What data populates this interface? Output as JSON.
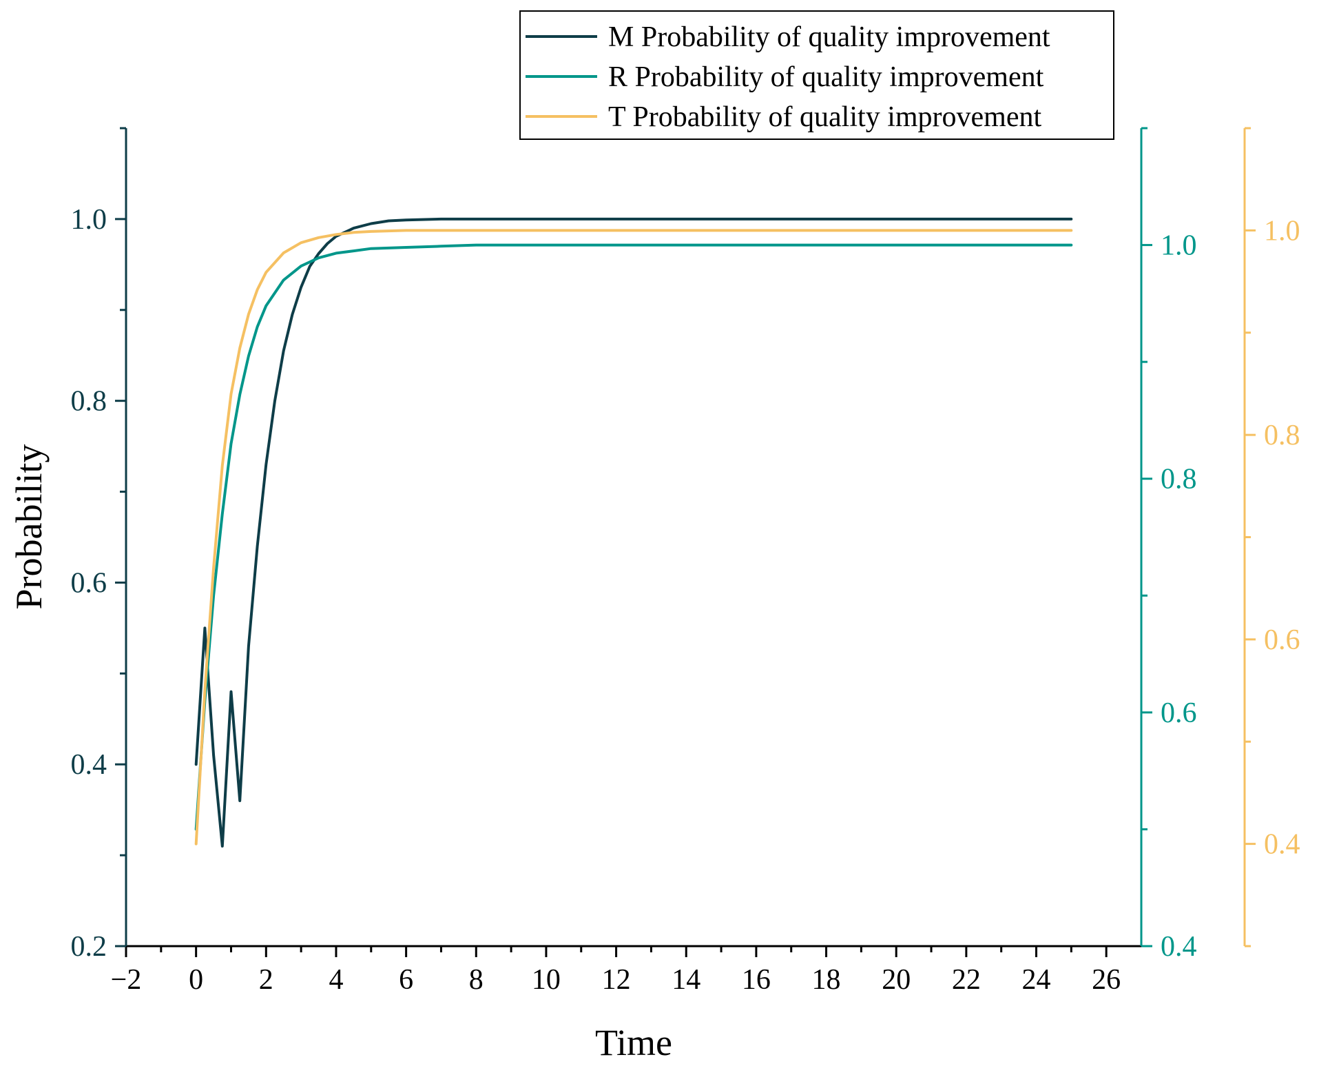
{
  "chart_data": {
    "type": "line",
    "title": "",
    "xlabel": "Time",
    "ylabel": "Probability",
    "xlim": [
      -2,
      27
    ],
    "x_ticks": [
      -2,
      0,
      2,
      4,
      6,
      8,
      10,
      12,
      14,
      16,
      18,
      20,
      22,
      24,
      26
    ],
    "x_tick_labels": [
      "−2",
      "0",
      "2",
      "4",
      "6",
      "8",
      "10",
      "12",
      "14",
      "16",
      "18",
      "20",
      "22",
      "24",
      "26"
    ],
    "axes": [
      {
        "id": "M",
        "side": "left",
        "color": "#0e3d48",
        "ylim": [
          0.2,
          1.1
        ],
        "ticks": [
          0.2,
          0.4,
          0.6,
          0.8,
          1.0
        ],
        "tick_labels": [
          "0.2",
          "0.4",
          "0.6",
          "0.8",
          "1.0"
        ]
      },
      {
        "id": "R",
        "side": "right",
        "color": "#00968a",
        "ylim": [
          0.4,
          1.1
        ],
        "ticks": [
          0.4,
          0.6,
          0.8,
          1.0
        ],
        "tick_labels": [
          "0.4",
          "0.6",
          "0.8",
          "1.0"
        ]
      },
      {
        "id": "T",
        "side": "right-outer",
        "color": "#f5c062",
        "ylim": [
          0.3,
          1.1
        ],
        "ticks": [
          0.4,
          0.6,
          0.8,
          1.0
        ],
        "tick_labels": [
          "0.4",
          "0.6",
          "0.8",
          "1.0"
        ]
      }
    ],
    "legend_position": "top-right",
    "series": [
      {
        "name": "M Probability of quality improvement",
        "axis": "M",
        "color": "#0e3d48",
        "x": [
          0,
          0.25,
          0.5,
          0.75,
          1.0,
          1.25,
          1.5,
          1.75,
          2.0,
          2.25,
          2.5,
          2.75,
          3.0,
          3.25,
          3.5,
          3.75,
          4.0,
          4.5,
          5.0,
          5.5,
          6.0,
          7.0,
          8.0,
          10.0,
          25.0
        ],
        "y": [
          0.4,
          0.55,
          0.41,
          0.31,
          0.48,
          0.36,
          0.53,
          0.64,
          0.73,
          0.8,
          0.855,
          0.895,
          0.925,
          0.948,
          0.962,
          0.973,
          0.981,
          0.99,
          0.995,
          0.998,
          0.999,
          1.0,
          1.0,
          1.0,
          1.0
        ]
      },
      {
        "name": "R Probability of quality improvement",
        "axis": "R",
        "color": "#00968a",
        "x": [
          0,
          0.25,
          0.5,
          0.75,
          1.0,
          1.25,
          1.5,
          1.75,
          2.0,
          2.5,
          3.0,
          3.5,
          4.0,
          4.5,
          5.0,
          6.0,
          7.0,
          8.0,
          10.0,
          25.0
        ],
        "y": [
          0.5,
          0.61,
          0.7,
          0.77,
          0.83,
          0.872,
          0.905,
          0.93,
          0.948,
          0.97,
          0.982,
          0.989,
          0.993,
          0.995,
          0.997,
          0.998,
          0.999,
          1.0,
          1.0,
          1.0
        ]
      },
      {
        "name": "T Probability of quality improvement",
        "axis": "T",
        "color": "#f5c062",
        "x": [
          0,
          0.25,
          0.5,
          0.75,
          1.0,
          1.25,
          1.5,
          1.75,
          2.0,
          2.5,
          3.0,
          3.5,
          4.0,
          4.5,
          5.0,
          6.0,
          7.0,
          8.0,
          10.0,
          25.0
        ],
        "y": [
          0.4,
          0.55,
          0.67,
          0.77,
          0.84,
          0.885,
          0.918,
          0.942,
          0.959,
          0.978,
          0.988,
          0.993,
          0.996,
          0.998,
          0.999,
          1.0,
          1.0,
          1.0,
          1.0,
          1.0
        ]
      }
    ]
  }
}
